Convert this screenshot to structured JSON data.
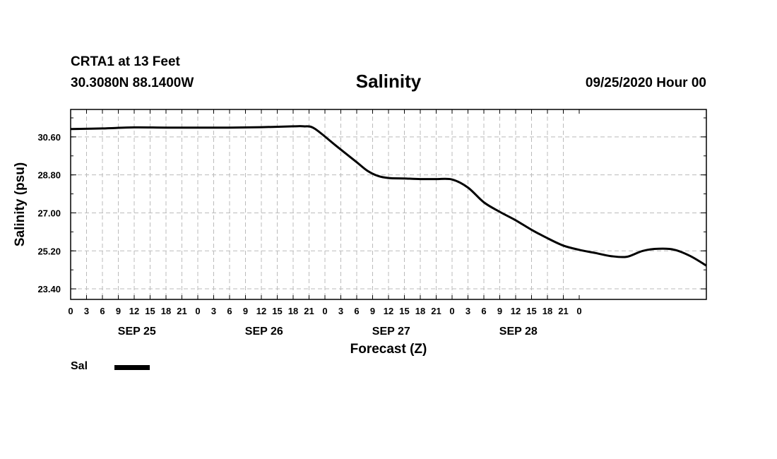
{
  "header": {
    "station": "CRTA1 at 13 Feet",
    "coords": "30.3080N 88.1400W",
    "title": "Salinity",
    "date": "09/25/2020 Hour 00"
  },
  "legend": {
    "label": "Sal"
  },
  "chart_data": {
    "type": "line",
    "title": "Salinity",
    "xlabel": "Forecast (Z)",
    "ylabel": "Salinity (psu)",
    "ylim": [
      22.9,
      31.9
    ],
    "y_ticks": [
      "30.60",
      "28.80",
      "27.00",
      "25.20",
      "23.40"
    ],
    "x_ticks": [
      "0",
      "3",
      "6",
      "9",
      "12",
      "15",
      "18",
      "21",
      "0",
      "3",
      "6",
      "9",
      "12",
      "15",
      "18",
      "21",
      "0",
      "3",
      "6",
      "9",
      "12",
      "15",
      "18",
      "21",
      "0",
      "3",
      "6",
      "9",
      "12",
      "15",
      "18",
      "21",
      "0"
    ],
    "day_labels": [
      "SEP 25",
      "SEP 26",
      "SEP 27",
      "SEP 28"
    ],
    "x_unit": "hours from 09/25/2020 00Z",
    "grid": true,
    "legend_position": "bottom-left",
    "series": [
      {
        "name": "Sal",
        "color": "#000000",
        "x": [
          0,
          6,
          12,
          18,
          24,
          30,
          36,
          42,
          44,
          46,
          50,
          54,
          56,
          58,
          60,
          63,
          66,
          69,
          72,
          75,
          78,
          81,
          84,
          87,
          90,
          93,
          96,
          99,
          102,
          105,
          108,
          111,
          114,
          117,
          120
        ],
        "y": [
          30.97,
          31.0,
          31.05,
          31.04,
          31.04,
          31.04,
          31.06,
          31.1,
          31.1,
          31.0,
          30.2,
          29.4,
          29.0,
          28.75,
          28.65,
          28.63,
          28.6,
          28.6,
          28.58,
          28.2,
          27.5,
          27.05,
          26.65,
          26.2,
          25.8,
          25.45,
          25.25,
          25.1,
          24.95,
          24.92,
          25.2,
          25.3,
          25.25,
          24.95,
          24.5
        ]
      }
    ]
  }
}
